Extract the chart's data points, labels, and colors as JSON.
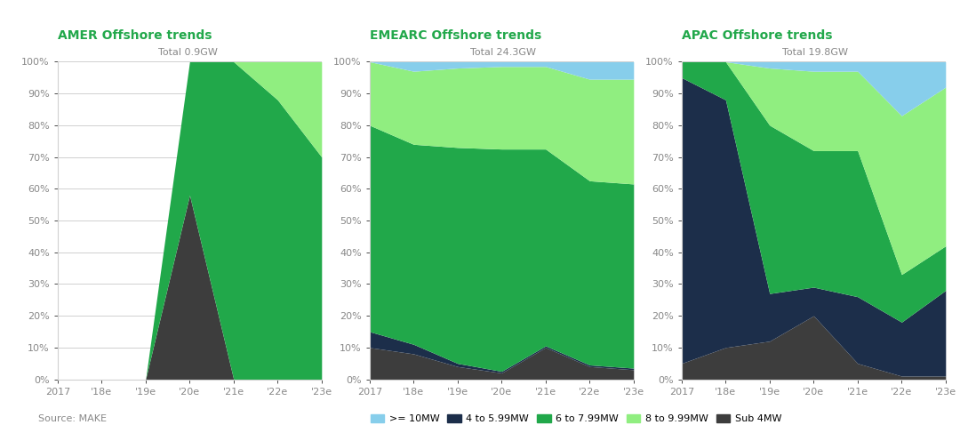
{
  "x_labels": [
    "2017",
    "'18e",
    "'19e",
    "'20e",
    "'21e",
    "'22e",
    "'23e"
  ],
  "panels": [
    {
      "title": "AMER Offshore trends",
      "subtitle": "Total 0.9GW",
      "sub4MW": [
        0,
        0,
        0,
        0.58,
        0,
        0,
        0
      ],
      "s4to6MW": [
        0,
        0,
        0,
        0,
        0,
        0,
        0
      ],
      "s6to8MW": [
        0,
        0,
        0,
        0.42,
        1.0,
        0.88,
        0.7
      ],
      "s8to10MW": [
        0,
        0,
        0,
        0,
        0,
        0.12,
        0.3
      ],
      "ge10MW": [
        0,
        0,
        0,
        0,
        0,
        0,
        0
      ]
    },
    {
      "title": "EMEARC Offshore trends",
      "subtitle": "Total 24.3GW",
      "sub4MW": [
        0.1,
        0.08,
        0.04,
        0.02,
        0.1,
        0.04,
        0.03
      ],
      "s4to6MW": [
        0.05,
        0.03,
        0.01,
        0.005,
        0.005,
        0.005,
        0.005
      ],
      "s6to8MW": [
        0.65,
        0.63,
        0.68,
        0.7,
        0.62,
        0.58,
        0.58
      ],
      "s8to10MW": [
        0.2,
        0.23,
        0.25,
        0.26,
        0.26,
        0.32,
        0.33
      ],
      "ge10MW": [
        0,
        0.03,
        0.02,
        0.015,
        0.015,
        0.055,
        0.055
      ]
    },
    {
      "title": "APAC Offshore trends",
      "subtitle": "Total 19.8GW",
      "sub4MW": [
        0.05,
        0.1,
        0.12,
        0.2,
        0.05,
        0.01,
        0.01
      ],
      "s4to6MW": [
        0.9,
        0.78,
        0.15,
        0.09,
        0.21,
        0.17,
        0.27
      ],
      "s6to8MW": [
        0.05,
        0.12,
        0.53,
        0.43,
        0.46,
        0.15,
        0.14
      ],
      "s8to10MW": [
        0,
        0,
        0.18,
        0.25,
        0.25,
        0.5,
        0.5
      ],
      "ge10MW": [
        0,
        0,
        0.02,
        0.03,
        0.03,
        0.17,
        0.08
      ]
    }
  ],
  "colors": {
    "sub4MW": "#3D3D3D",
    "s4to6MW": "#1C2E4A",
    "s6to8MW": "#21A84A",
    "s8to10MW": "#90EE80",
    "ge10MW": "#87CEEB"
  },
  "legend_labels": {
    "ge10MW": ">= 10MW",
    "s4to6MW": "4 to 5.99MW",
    "s6to8MW": "6 to 7.99MW",
    "s8to10MW": "8 to 9.99MW",
    "sub4MW": "Sub 4MW"
  },
  "title_color": "#22A84B",
  "bg_color": "#FFFFFF",
  "source_text": "Source: MAKE",
  "tick_color": "#888888",
  "grid_color": "#D0D0D0"
}
